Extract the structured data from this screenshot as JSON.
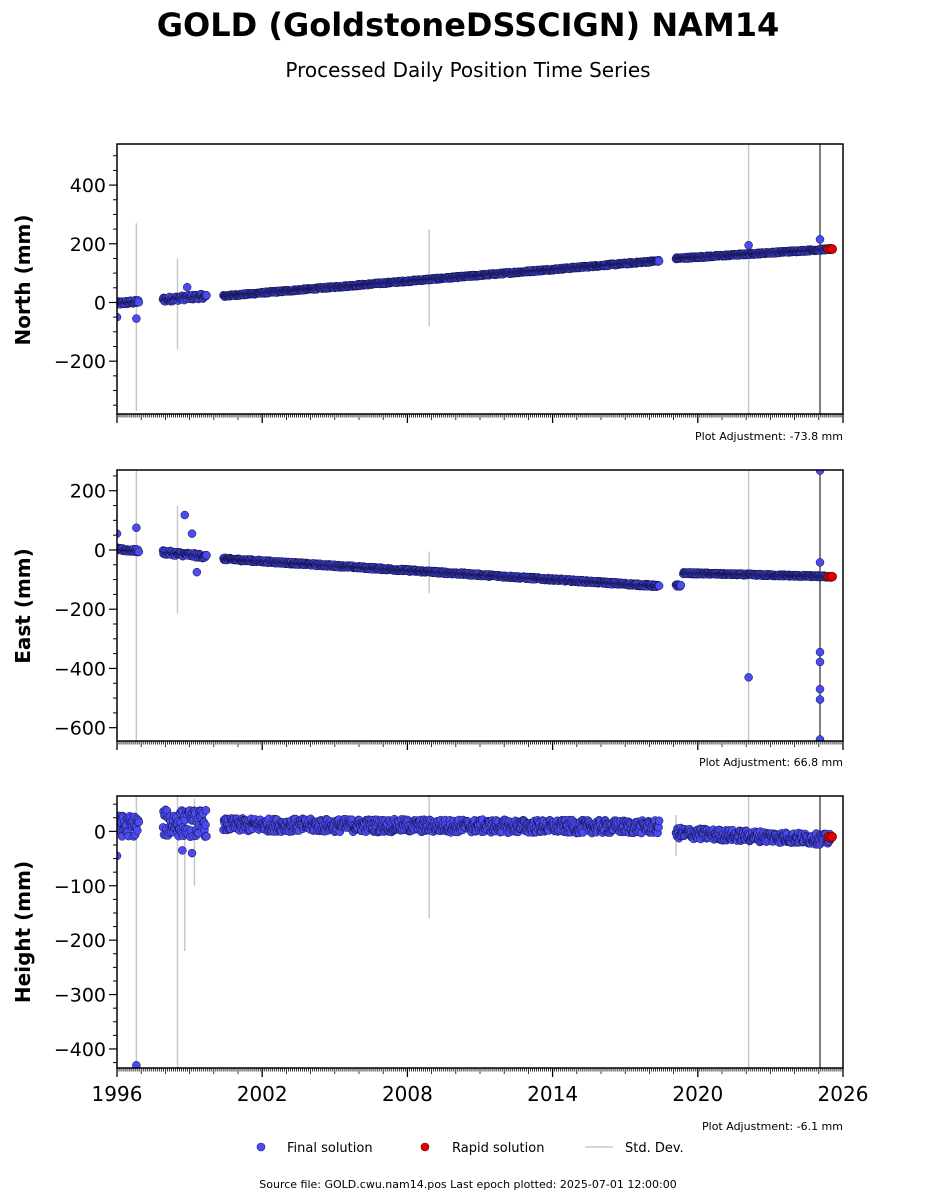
{
  "figure": {
    "title": "GOLD (GoldstoneDSSCIGN) NAM14",
    "subtitle": "Processed Daily Position Time Series",
    "footer": "Source file: GOLD.cwu.nam14.pos  Last epoch plotted: 2025-07-01 12:00:00",
    "colors": {
      "final": "#4b4bf0",
      "rapid": "#e00000",
      "std": "#c8c8c8",
      "event_line": "#555555",
      "grey_line": "#c8c8c8"
    }
  },
  "legend": {
    "final": "Final solution",
    "rapid": "Rapid solution",
    "std": "Std. Dev."
  },
  "chart_data": [
    {
      "type": "scatter",
      "component": "north",
      "ylabel": "North (mm)",
      "adjustment": "Plot Adjustment: -73.8 mm",
      "xlim": [
        1996,
        2026
      ],
      "ylim": [
        -380,
        540
      ],
      "yticks": [
        -200,
        0,
        200,
        400
      ],
      "ytick_labels": [
        "−200",
        "0",
        "200",
        "400"
      ],
      "vertical_lines": [
        {
          "x": 2022.1,
          "color": "grey"
        },
        {
          "x": 2025.05,
          "color": "dark"
        }
      ],
      "segments": [
        {
          "x0": 1996.0,
          "x1": 1996.9,
          "y0": -3,
          "y1": 3,
          "noise": 6
        },
        {
          "x0": 1997.9,
          "x1": 1999.7,
          "y0": 10,
          "y1": 22,
          "noise": 8
        },
        {
          "x0": 2000.4,
          "x1": 2018.4,
          "y0": 22,
          "y1": 142,
          "noise": 3
        },
        {
          "x0": 2019.1,
          "x1": 2025.5,
          "y0": 150,
          "y1": 182,
          "noise": 3
        }
      ],
      "outliers": [
        {
          "x": 1996.0,
          "y": -50
        },
        {
          "x": 1996.8,
          "y": -55
        },
        {
          "x": 1998.9,
          "y": 52
        },
        {
          "x": 2022.1,
          "y": 195
        },
        {
          "x": 2025.05,
          "y": 215
        }
      ],
      "errorbars": [
        {
          "x": 1996.8,
          "y0": -370,
          "y1": 270
        },
        {
          "x": 1998.5,
          "y0": -160,
          "y1": 150
        },
        {
          "x": 2008.9,
          "y0": -80,
          "y1": 250
        }
      ],
      "rapid": [
        {
          "x": 2025.4,
          "y": 182
        },
        {
          "x": 2025.5,
          "y": 183
        },
        {
          "x": 2025.55,
          "y": 182
        }
      ]
    },
    {
      "type": "scatter",
      "component": "east",
      "ylabel": "East (mm)",
      "adjustment": "Plot Adjustment: 66.8 mm",
      "xlim": [
        1996,
        2026
      ],
      "ylim": [
        -645,
        270
      ],
      "yticks": [
        -600,
        -400,
        -200,
        0,
        200
      ],
      "ytick_labels": [
        "−600",
        "−400",
        "−200",
        "0",
        "200"
      ],
      "vertical_lines": [
        {
          "x": 2022.1,
          "color": "grey"
        },
        {
          "x": 2025.05,
          "color": "dark"
        }
      ],
      "segments": [
        {
          "x0": 1996.0,
          "x1": 1996.9,
          "y0": 2,
          "y1": -3,
          "noise": 5
        },
        {
          "x0": 1997.9,
          "x1": 1999.7,
          "y0": -8,
          "y1": -22,
          "noise": 7
        },
        {
          "x0": 2000.4,
          "x1": 2018.4,
          "y0": -30,
          "y1": -122,
          "noise": 4
        },
        {
          "x0": 2019.1,
          "x1": 2019.3,
          "y0": -122,
          "y1": -120,
          "noise": 5
        },
        {
          "x0": 2019.4,
          "x1": 2025.5,
          "y0": -78,
          "y1": -90,
          "noise": 3
        }
      ],
      "outliers": [
        {
          "x": 1996.0,
          "y": 55
        },
        {
          "x": 1996.8,
          "y": 75
        },
        {
          "x": 1998.8,
          "y": 118
        },
        {
          "x": 1999.1,
          "y": 55
        },
        {
          "x": 1999.3,
          "y": -75
        },
        {
          "x": 2022.1,
          "y": -430
        },
        {
          "x": 2025.05,
          "y": 268
        },
        {
          "x": 2025.05,
          "y": -42
        },
        {
          "x": 2025.05,
          "y": -345
        },
        {
          "x": 2025.05,
          "y": -378
        },
        {
          "x": 2025.05,
          "y": -470
        },
        {
          "x": 2025.05,
          "y": -505
        },
        {
          "x": 2025.05,
          "y": -640
        }
      ],
      "errorbars": [
        {
          "x": 1996.8,
          "y0": -645,
          "y1": 270
        },
        {
          "x": 1998.5,
          "y0": -215,
          "y1": 150
        },
        {
          "x": 2008.9,
          "y0": -145,
          "y1": -5
        }
      ],
      "rapid": [
        {
          "x": 2025.4,
          "y": -90
        },
        {
          "x": 2025.5,
          "y": -91
        },
        {
          "x": 2025.55,
          "y": -90
        }
      ]
    },
    {
      "type": "scatter",
      "component": "height",
      "ylabel": "Height (mm)",
      "adjustment": "Plot Adjustment: -6.1 mm",
      "xlim": [
        1996,
        2026
      ],
      "ylim": [
        -435,
        65
      ],
      "yticks": [
        -400,
        -300,
        -200,
        -100,
        0
      ],
      "ytick_labels": [
        "−400",
        "−300",
        "−200",
        "−100",
        "0"
      ],
      "xticks": [
        1996,
        2002,
        2008,
        2014,
        2020,
        2026
      ],
      "vertical_lines": [
        {
          "x": 2022.1,
          "color": "grey"
        },
        {
          "x": 2025.05,
          "color": "dark"
        }
      ],
      "segments": [
        {
          "x0": 1996.0,
          "x1": 1996.9,
          "y0": 10,
          "y1": 10,
          "noise": 20
        },
        {
          "x0": 1997.9,
          "x1": 1999.7,
          "y0": 15,
          "y1": 15,
          "noise": 25
        },
        {
          "x0": 2000.4,
          "x1": 2018.4,
          "y0": 12,
          "y1": 8,
          "noise": 12
        },
        {
          "x0": 2019.1,
          "x1": 2025.5,
          "y0": -3,
          "y1": -15,
          "noise": 10
        }
      ],
      "outliers": [
        {
          "x": 1996.0,
          "y": -45
        },
        {
          "x": 1996.8,
          "y": -430
        },
        {
          "x": 1998.7,
          "y": -35
        },
        {
          "x": 1999.1,
          "y": -40
        }
      ],
      "errorbars": [
        {
          "x": 1996.8,
          "y0": -435,
          "y1": 65
        },
        {
          "x": 1998.5,
          "y0": -435,
          "y1": 65
        },
        {
          "x": 1998.8,
          "y0": -220,
          "y1": 30
        },
        {
          "x": 1999.2,
          "y0": -100,
          "y1": 60
        },
        {
          "x": 2008.9,
          "y0": -160,
          "y1": 65
        },
        {
          "x": 2019.1,
          "y0": -45,
          "y1": 30
        }
      ],
      "rapid": [
        {
          "x": 2025.4,
          "y": -10
        },
        {
          "x": 2025.5,
          "y": -12
        },
        {
          "x": 2025.55,
          "y": -10
        }
      ]
    }
  ]
}
